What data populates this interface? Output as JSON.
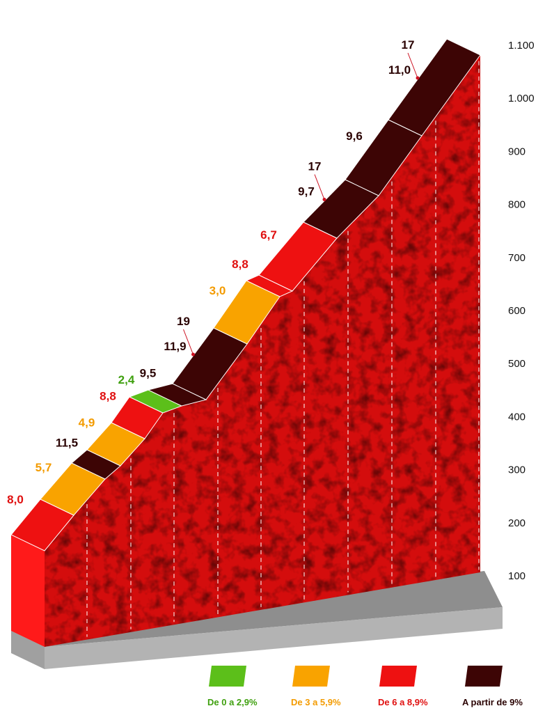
{
  "chart_data": {
    "type": "area",
    "yticks": [
      100,
      200,
      300,
      400,
      500,
      600,
      700,
      800,
      900,
      "1.000",
      "1.100"
    ],
    "segments": [
      {
        "gradient": "8,0",
        "class": "red"
      },
      {
        "gradient": "5,7",
        "class": "orange"
      },
      {
        "gradient": "11,5",
        "class": "dark"
      },
      {
        "gradient": "4,9",
        "class": "orange"
      },
      {
        "gradient": "8,8",
        "class": "red"
      },
      {
        "gradient": "2,4",
        "class": "green"
      },
      {
        "gradient": "9,5",
        "class": "dark"
      },
      {
        "gradient": "11,9",
        "class": "dark",
        "max": "19"
      },
      {
        "gradient": "3,0",
        "class": "orange"
      },
      {
        "gradient": "8,8",
        "class": "red"
      },
      {
        "gradient": "6,7",
        "class": "red"
      },
      {
        "gradient": "9,7",
        "class": "dark",
        "max": "17"
      },
      {
        "gradient": "9,6",
        "class": "dark"
      },
      {
        "gradient": "11,0",
        "class": "dark",
        "max": "17"
      }
    ],
    "legend": [
      {
        "label": "De 0 a 2,9%",
        "class": "green"
      },
      {
        "label": "De 3 a 5,9%",
        "class": "orange"
      },
      {
        "label": "De 6 a 8,9%",
        "class": "red"
      },
      {
        "label": "A partir de 9%",
        "class": "dark"
      }
    ]
  },
  "colors": {
    "green": "#5cbf1a",
    "orange": "#f9a300",
    "red": "#ee1111",
    "dark": "#3d0505",
    "wall": "#d40d0d",
    "base": "#a8a8a8"
  }
}
